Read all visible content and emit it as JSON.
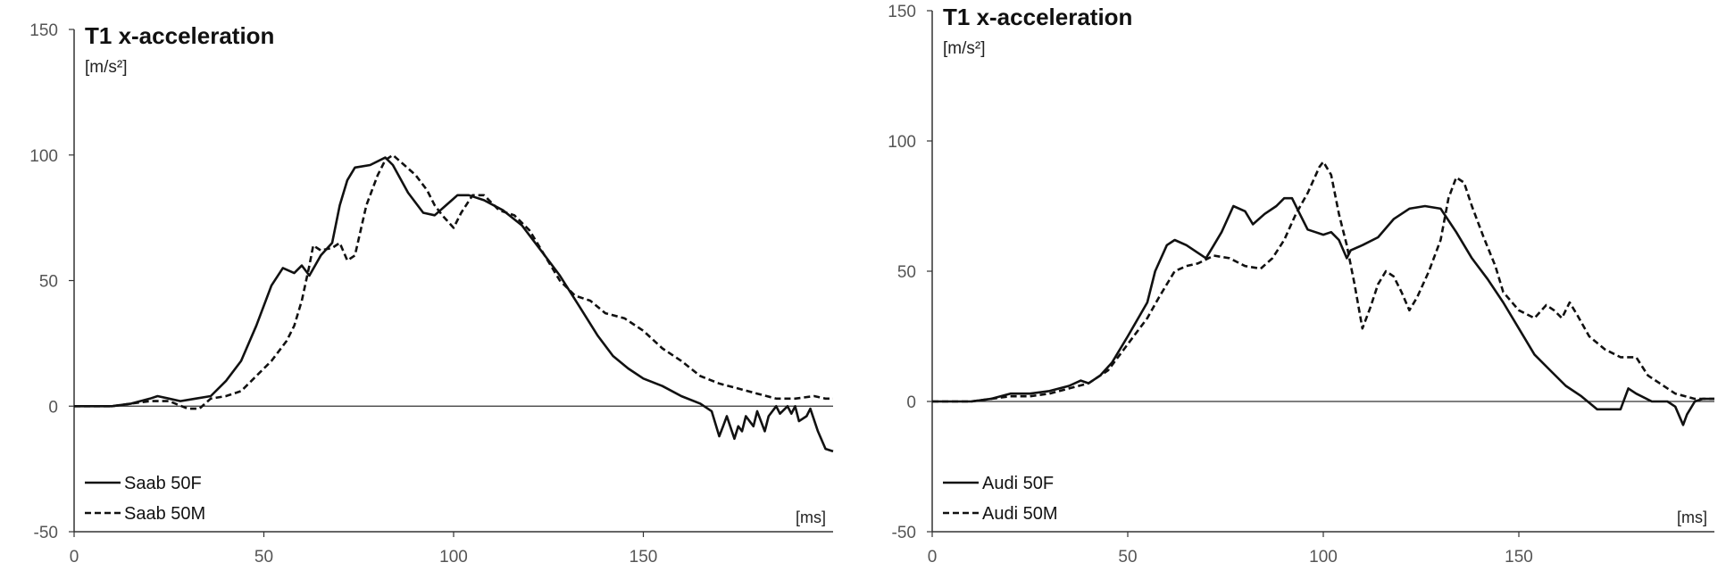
{
  "chart_data": [
    {
      "type": "line",
      "title": "T1 x-acceleration",
      "ylabel": "[m/s²]",
      "xlabel": "[ms]",
      "xlim": [
        0,
        200
      ],
      "ylim": [
        -50,
        150
      ],
      "xticks": [
        0,
        50,
        100,
        150
      ],
      "yticks": [
        -50,
        0,
        50,
        100,
        150
      ],
      "legend_position": "bottom-left",
      "series": [
        {
          "name": "Saab 50F",
          "style": "solid",
          "points": [
            [
              0,
              0
            ],
            [
              10,
              0
            ],
            [
              15,
              1
            ],
            [
              20,
              3
            ],
            [
              22,
              4
            ],
            [
              25,
              3
            ],
            [
              28,
              2
            ],
            [
              32,
              3
            ],
            [
              36,
              4
            ],
            [
              40,
              10
            ],
            [
              44,
              18
            ],
            [
              48,
              32
            ],
            [
              52,
              48
            ],
            [
              55,
              55
            ],
            [
              58,
              53
            ],
            [
              60,
              56
            ],
            [
              62,
              52
            ],
            [
              65,
              60
            ],
            [
              68,
              65
            ],
            [
              70,
              80
            ],
            [
              72,
              90
            ],
            [
              74,
              95
            ],
            [
              78,
              96
            ],
            [
              82,
              99
            ],
            [
              84,
              96
            ],
            [
              88,
              85
            ],
            [
              92,
              77
            ],
            [
              95,
              76
            ],
            [
              98,
              80
            ],
            [
              101,
              84
            ],
            [
              104,
              84
            ],
            [
              108,
              82
            ],
            [
              113,
              78
            ],
            [
              118,
              72
            ],
            [
              123,
              62
            ],
            [
              128,
              52
            ],
            [
              133,
              40
            ],
            [
              138,
              28
            ],
            [
              142,
              20
            ],
            [
              146,
              15
            ],
            [
              150,
              11
            ],
            [
              155,
              8
            ],
            [
              160,
              4
            ],
            [
              165,
              1
            ],
            [
              168,
              -2
            ],
            [
              170,
              -12
            ],
            [
              171,
              -8
            ],
            [
              172,
              -4
            ],
            [
              174,
              -13
            ],
            [
              175,
              -8
            ],
            [
              176,
              -10
            ],
            [
              177,
              -4
            ],
            [
              179,
              -8
            ],
            [
              180,
              -2
            ],
            [
              182,
              -10
            ],
            [
              183,
              -4
            ],
            [
              185,
              0
            ],
            [
              186,
              -3
            ],
            [
              188,
              0
            ],
            [
              189,
              -3
            ],
            [
              190,
              0
            ],
            [
              191,
              -6
            ],
            [
              193,
              -4
            ],
            [
              194,
              -1
            ],
            [
              196,
              -10
            ],
            [
              198,
              -17
            ],
            [
              200,
              -18
            ]
          ]
        },
        {
          "name": "Saab 50M",
          "style": "dashed",
          "points": [
            [
              0,
              0
            ],
            [
              10,
              0
            ],
            [
              15,
              1
            ],
            [
              20,
              2
            ],
            [
              25,
              2
            ],
            [
              30,
              -1
            ],
            [
              33,
              -1
            ],
            [
              36,
              3
            ],
            [
              40,
              4
            ],
            [
              44,
              6
            ],
            [
              48,
              12
            ],
            [
              52,
              18
            ],
            [
              56,
              26
            ],
            [
              58,
              32
            ],
            [
              60,
              42
            ],
            [
              62,
              56
            ],
            [
              63,
              64
            ],
            [
              65,
              62
            ],
            [
              68,
              63
            ],
            [
              70,
              65
            ],
            [
              72,
              58
            ],
            [
              74,
              60
            ],
            [
              77,
              80
            ],
            [
              80,
              92
            ],
            [
              82,
              98
            ],
            [
              84,
              100
            ],
            [
              87,
              96
            ],
            [
              90,
              92
            ],
            [
              93,
              86
            ],
            [
              95,
              80
            ],
            [
              97,
              76
            ],
            [
              100,
              71
            ],
            [
              102,
              77
            ],
            [
              105,
              84
            ],
            [
              108,
              84
            ],
            [
              112,
              78
            ],
            [
              116,
              76
            ],
            [
              120,
              70
            ],
            [
              124,
              60
            ],
            [
              128,
              50
            ],
            [
              132,
              44
            ],
            [
              136,
              42
            ],
            [
              140,
              37
            ],
            [
              145,
              35
            ],
            [
              150,
              30
            ],
            [
              155,
              23
            ],
            [
              160,
              18
            ],
            [
              165,
              12
            ],
            [
              170,
              9
            ],
            [
              175,
              7
            ],
            [
              180,
              5
            ],
            [
              185,
              3
            ],
            [
              190,
              3
            ],
            [
              195,
              4
            ],
            [
              198,
              3
            ],
            [
              200,
              3
            ]
          ]
        }
      ]
    },
    {
      "type": "line",
      "title": "T1 x-acceleration",
      "ylabel": "[m/s²]",
      "xlabel": "[ms]",
      "xlim": [
        0,
        200
      ],
      "ylim": [
        -50,
        150
      ],
      "xticks": [
        0,
        50,
        100,
        150
      ],
      "yticks": [
        -50,
        0,
        50,
        100,
        150
      ],
      "legend_position": "bottom-left",
      "series": [
        {
          "name": "Audi 50F",
          "style": "solid",
          "points": [
            [
              0,
              0
            ],
            [
              10,
              0
            ],
            [
              15,
              1
            ],
            [
              20,
              3
            ],
            [
              25,
              3
            ],
            [
              30,
              4
            ],
            [
              35,
              6
            ],
            [
              38,
              8
            ],
            [
              40,
              7
            ],
            [
              43,
              10
            ],
            [
              46,
              15
            ],
            [
              50,
              25
            ],
            [
              55,
              38
            ],
            [
              57,
              50
            ],
            [
              60,
              60
            ],
            [
              62,
              62
            ],
            [
              65,
              60
            ],
            [
              68,
              57
            ],
            [
              70,
              55
            ],
            [
              72,
              60
            ],
            [
              74,
              65
            ],
            [
              77,
              75
            ],
            [
              80,
              73
            ],
            [
              82,
              68
            ],
            [
              85,
              72
            ],
            [
              88,
              75
            ],
            [
              90,
              78
            ],
            [
              92,
              78
            ],
            [
              94,
              72
            ],
            [
              96,
              66
            ],
            [
              98,
              65
            ],
            [
              100,
              64
            ],
            [
              102,
              65
            ],
            [
              104,
              62
            ],
            [
              106,
              55
            ],
            [
              107,
              58
            ],
            [
              110,
              60
            ],
            [
              114,
              63
            ],
            [
              118,
              70
            ],
            [
              122,
              74
            ],
            [
              126,
              75
            ],
            [
              130,
              74
            ],
            [
              134,
              65
            ],
            [
              138,
              55
            ],
            [
              142,
              47
            ],
            [
              146,
              38
            ],
            [
              150,
              28
            ],
            [
              154,
              18
            ],
            [
              158,
              12
            ],
            [
              162,
              6
            ],
            [
              166,
              2
            ],
            [
              170,
              -3
            ],
            [
              174,
              -3
            ],
            [
              176,
              -3
            ],
            [
              178,
              5
            ],
            [
              180,
              3
            ],
            [
              184,
              0
            ],
            [
              188,
              0
            ],
            [
              190,
              -2
            ],
            [
              192,
              -9
            ],
            [
              193,
              -5
            ],
            [
              195,
              0
            ],
            [
              197,
              1
            ],
            [
              200,
              1
            ]
          ]
        },
        {
          "name": "Audi 50M",
          "style": "dashed",
          "points": [
            [
              0,
              0
            ],
            [
              10,
              0
            ],
            [
              15,
              1
            ],
            [
              20,
              2
            ],
            [
              25,
              2
            ],
            [
              30,
              3
            ],
            [
              35,
              5
            ],
            [
              40,
              7
            ],
            [
              45,
              12
            ],
            [
              50,
              22
            ],
            [
              55,
              32
            ],
            [
              58,
              40
            ],
            [
              60,
              45
            ],
            [
              62,
              50
            ],
            [
              65,
              52
            ],
            [
              68,
              53
            ],
            [
              72,
              56
            ],
            [
              76,
              55
            ],
            [
              80,
              52
            ],
            [
              84,
              51
            ],
            [
              87,
              55
            ],
            [
              90,
              62
            ],
            [
              93,
              72
            ],
            [
              96,
              80
            ],
            [
              99,
              90
            ],
            [
              100,
              92
            ],
            [
              102,
              87
            ],
            [
              104,
              72
            ],
            [
              106,
              60
            ],
            [
              108,
              45
            ],
            [
              110,
              28
            ],
            [
              112,
              36
            ],
            [
              114,
              45
            ],
            [
              116,
              50
            ],
            [
              118,
              48
            ],
            [
              120,
              42
            ],
            [
              122,
              35
            ],
            [
              124,
              40
            ],
            [
              127,
              50
            ],
            [
              130,
              62
            ],
            [
              132,
              78
            ],
            [
              134,
              86
            ],
            [
              136,
              84
            ],
            [
              138,
              75
            ],
            [
              141,
              63
            ],
            [
              144,
              52
            ],
            [
              146,
              42
            ],
            [
              150,
              35
            ],
            [
              154,
              32
            ],
            [
              157,
              37
            ],
            [
              159,
              35
            ],
            [
              161,
              32
            ],
            [
              163,
              38
            ],
            [
              165,
              33
            ],
            [
              168,
              25
            ],
            [
              172,
              20
            ],
            [
              176,
              17
            ],
            [
              180,
              17
            ],
            [
              183,
              10
            ],
            [
              186,
              7
            ],
            [
              190,
              3
            ],
            [
              195,
              1
            ],
            [
              200,
              1
            ]
          ]
        }
      ]
    }
  ]
}
